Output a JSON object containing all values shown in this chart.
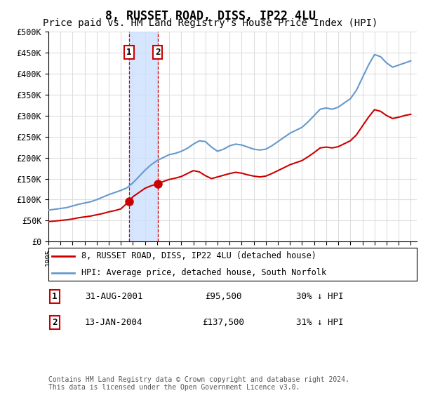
{
  "title": "8, RUSSET ROAD, DISS, IP22 4LU",
  "subtitle": "Price paid vs. HM Land Registry's House Price Index (HPI)",
  "title_fontsize": 12,
  "subtitle_fontsize": 10,
  "ylabel_ticks": [
    "£0",
    "£50K",
    "£100K",
    "£150K",
    "£200K",
    "£250K",
    "£300K",
    "£350K",
    "£400K",
    "£450K",
    "£500K"
  ],
  "ylim": [
    0,
    500000
  ],
  "xlim_start": 1995.0,
  "xlim_end": 2025.5,
  "purchase1_date": 2001.66,
  "purchase1_price": 95500,
  "purchase2_date": 2004.04,
  "purchase2_price": 137500,
  "legend_line1": "8, RUSSET ROAD, DISS, IP22 4LU (detached house)",
  "legend_line2": "HPI: Average price, detached house, South Norfolk",
  "table_row1_num": "1",
  "table_row1_date": "31-AUG-2001",
  "table_row1_price": "£95,500",
  "table_row1_hpi": "30% ↓ HPI",
  "table_row2_num": "2",
  "table_row2_date": "13-JAN-2004",
  "table_row2_price": "£137,500",
  "table_row2_hpi": "31% ↓ HPI",
  "footnote": "Contains HM Land Registry data © Crown copyright and database right 2024.\nThis data is licensed under the Open Government Licence v3.0.",
  "line_red_color": "#cc0000",
  "line_blue_color": "#6699cc",
  "shading_color": "#cce0ff",
  "grid_color": "#dddddd",
  "background_color": "#ffffff",
  "hpi_years": [
    1995,
    1995.5,
    1996,
    1996.5,
    1997,
    1997.5,
    1998,
    1998.5,
    1999,
    1999.5,
    2000,
    2000.5,
    2001,
    2001.5,
    2002,
    2002.5,
    2003,
    2003.5,
    2004,
    2004.5,
    2005,
    2005.5,
    2006,
    2006.5,
    2007,
    2007.5,
    2008,
    2008.5,
    2009,
    2009.5,
    2010,
    2010.5,
    2011,
    2011.5,
    2012,
    2012.5,
    2013,
    2013.5,
    2014,
    2014.5,
    2015,
    2015.5,
    2016,
    2016.5,
    2017,
    2017.5,
    2018,
    2018.5,
    2019,
    2019.5,
    2020,
    2020.5,
    2021,
    2021.5,
    2022,
    2022.5,
    2023,
    2023.5,
    2024,
    2024.5,
    2025
  ],
  "hpi_values": [
    75000,
    77000,
    79000,
    81000,
    85000,
    89000,
    92000,
    95000,
    100000,
    106000,
    112000,
    117000,
    122000,
    128000,
    140000,
    155000,
    170000,
    183000,
    193000,
    200000,
    207000,
    210000,
    215000,
    222000,
    232000,
    240000,
    238000,
    225000,
    215000,
    220000,
    228000,
    232000,
    230000,
    225000,
    220000,
    218000,
    220000,
    228000,
    238000,
    248000,
    258000,
    265000,
    272000,
    285000,
    300000,
    315000,
    318000,
    315000,
    320000,
    330000,
    340000,
    360000,
    390000,
    420000,
    445000,
    440000,
    425000,
    415000,
    420000,
    425000,
    430000
  ],
  "red_years": [
    1995,
    1995.5,
    1996,
    1996.5,
    1997,
    1997.5,
    1998,
    1998.5,
    1999,
    1999.5,
    2000,
    2000.5,
    2001,
    2001.66,
    2002,
    2002.5,
    2003,
    2003.5,
    2004.04,
    2004.5,
    2005,
    2005.5,
    2006,
    2006.5,
    2007,
    2007.5,
    2008,
    2008.5,
    2009,
    2009.5,
    2010,
    2010.5,
    2011,
    2011.5,
    2012,
    2012.5,
    2013,
    2013.5,
    2014,
    2014.5,
    2015,
    2015.5,
    2016,
    2016.5,
    2017,
    2017.5,
    2018,
    2018.5,
    2019,
    2019.5,
    2020,
    2020.5,
    2021,
    2021.5,
    2022,
    2022.5,
    2023,
    2023.5,
    2024,
    2024.5,
    2025
  ],
  "red_values": [
    48000,
    49000,
    50500,
    52000,
    54000,
    57000,
    59000,
    61000,
    64000,
    67000,
    71000,
    74000,
    78000,
    95500,
    107000,
    117000,
    127000,
    133000,
    137500,
    143000,
    148000,
    151000,
    155000,
    162000,
    169000,
    166000,
    157000,
    150000,
    154000,
    158000,
    162000,
    165000,
    163000,
    159000,
    156000,
    154000,
    156000,
    162000,
    169000,
    176000,
    183000,
    188000,
    193000,
    202000,
    212000,
    223000,
    225000,
    223000,
    226000,
    233000,
    240000,
    254000,
    275000,
    296000,
    314000,
    310000,
    300000,
    293000,
    296000,
    300000,
    303000
  ]
}
